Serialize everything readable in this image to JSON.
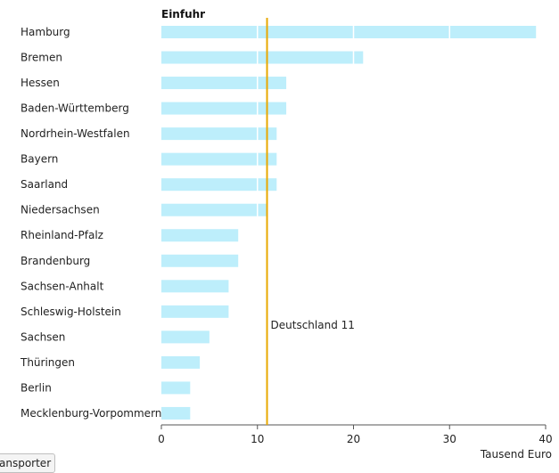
{
  "chart_data": {
    "type": "bar",
    "orientation": "horizontal",
    "title": "Einfuhr",
    "xlabel": "Tausend Euro",
    "xlim": [
      0,
      40
    ],
    "xticks": [
      0,
      10,
      20,
      30,
      40
    ],
    "categories": [
      "Hamburg",
      "Bremen",
      "Hessen",
      "Baden-Württemberg",
      "Nordrhein-Westfalen",
      "Bayern",
      "Saarland",
      "Niedersachsen",
      "Rheinland-Pfalz",
      "Brandenburg",
      "Sachsen-Anhalt",
      "Schleswig-Holstein",
      "Sachsen",
      "Thüringen",
      "Berlin",
      "Mecklenburg-Vorpommern"
    ],
    "values": [
      39,
      21,
      13,
      13,
      12,
      12,
      12,
      11,
      8,
      8,
      7,
      7,
      5,
      4,
      3,
      3
    ],
    "reference_line": {
      "label": "Deutschland 11",
      "value": 11
    },
    "colors": {
      "bar": "#bdeefb",
      "reference": "#e8a800",
      "axis": "#555555"
    }
  },
  "footer": {
    "button_label": "ansporter"
  }
}
